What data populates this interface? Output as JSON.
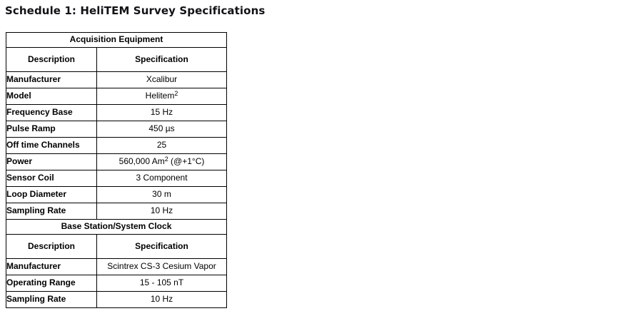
{
  "page": {
    "title": "Schedule 1: HeliTEM Survey Specifications"
  },
  "colors": {
    "background": "#ffffff",
    "text": "#000000",
    "table_border": "#000000",
    "title_text": "#121216"
  },
  "table": {
    "sections": [
      {
        "header": "Acquisition Equipment",
        "col_headers": [
          "Description",
          "Specification"
        ],
        "rows": [
          {
            "label": "Manufacturer",
            "value": "Xcalibur"
          },
          {
            "label": "Model",
            "value_pre": "Helitem",
            "value_sup": "2",
            "value_post": ""
          },
          {
            "label": "Frequency Base",
            "value": "15 Hz"
          },
          {
            "label": "Pulse Ramp",
            "value": "450 µs"
          },
          {
            "label": "Off time Channels",
            "value": "25"
          },
          {
            "label": "Power",
            "value_pre": "560,000 Am",
            "value_sup": "2",
            "value_post": " (@+1°C)"
          },
          {
            "label": "Sensor Coil",
            "value": "3 Component"
          },
          {
            "label": "Loop Diameter",
            "value": "30 m"
          },
          {
            "label": "Sampling Rate",
            "value": "10 Hz"
          }
        ]
      },
      {
        "header": "Base Station/System Clock",
        "col_headers": [
          "Description",
          "Specification"
        ],
        "rows": [
          {
            "label": "Manufacturer",
            "value": "Scintrex CS-3 Cesium Vapor"
          },
          {
            "label": "Operating Range",
            "value": "15 - 105 nT"
          },
          {
            "label": "Sampling Rate",
            "value": "10 Hz"
          }
        ]
      }
    ]
  }
}
